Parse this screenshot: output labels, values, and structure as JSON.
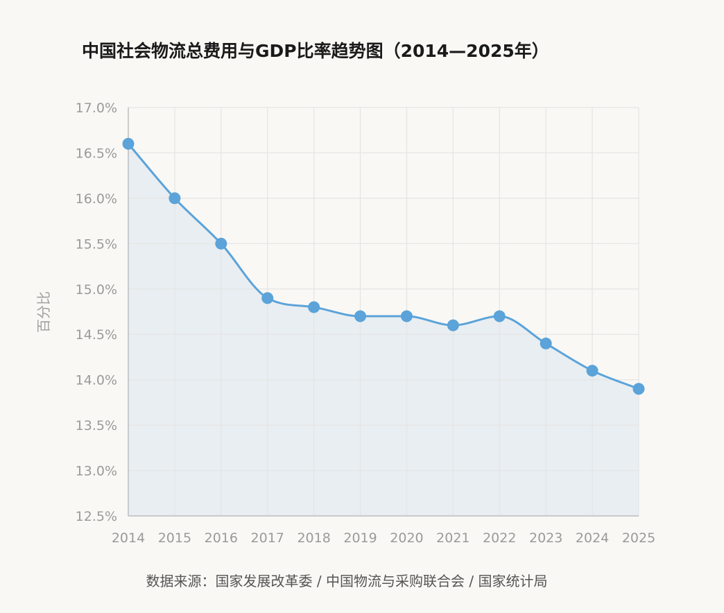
{
  "chart_data": {
    "type": "line",
    "title": "中国社会物流总费用与GDP比率趋势图（2014—2025年）",
    "xlabel": "",
    "ylabel": "百分比",
    "categories": [
      "2014",
      "2015",
      "2016",
      "2017",
      "2018",
      "2019",
      "2020",
      "2021",
      "2022",
      "2023",
      "2024",
      "2025"
    ],
    "series": [
      {
        "values": [
          16.6,
          16.0,
          15.5,
          14.9,
          14.8,
          14.7,
          14.7,
          14.6,
          14.7,
          14.4,
          14.1,
          13.9
        ]
      }
    ],
    "ylim": [
      12.5,
      17.0
    ],
    "yticks": [
      12.5,
      13.0,
      13.5,
      14.0,
      14.5,
      15.0,
      15.5,
      16.0,
      16.5,
      17.0
    ],
    "ytick_labels": [
      "12.5%",
      "13.0%",
      "13.5%",
      "14.0%",
      "14.5%",
      "15.0%",
      "15.5%",
      "16.0%",
      "16.5%",
      "17.0%"
    ],
    "grid": true,
    "area_fill": true,
    "smooth": true,
    "line_color": "#5ba3d9",
    "marker_color": "#5ba3d9",
    "fill_color": "#e9eef2",
    "source": "数据来源：国家发展改革委 / 中国物流与采购联合会 / 国家统计局"
  }
}
